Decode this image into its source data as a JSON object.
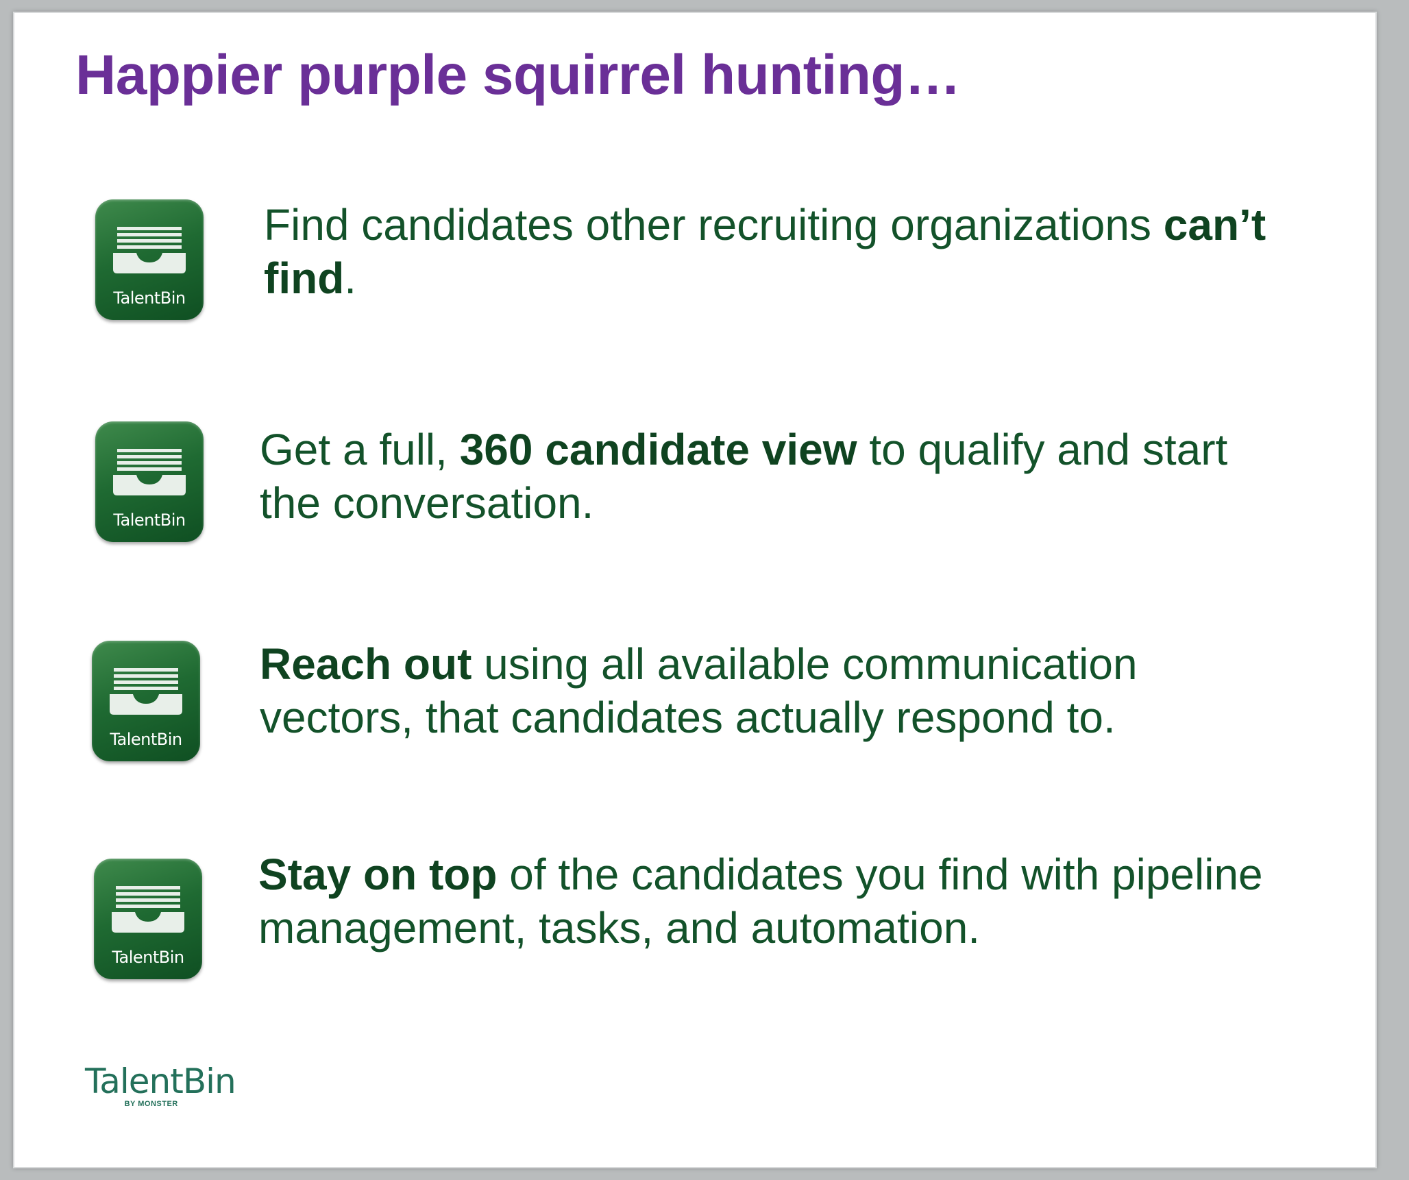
{
  "slide": {
    "title": "Happier purple squirrel hunting…",
    "icon_label": "TalentBin",
    "items": [
      {
        "parts": [
          {
            "text": "Find candidates other recruiting organizations "
          },
          {
            "text": "can’t find",
            "bold": true
          },
          {
            "text": "."
          }
        ]
      },
      {
        "parts": [
          {
            "text": "Get a full, "
          },
          {
            "text": "360 candidate view",
            "bold": true
          },
          {
            "text": " to qualify and start the conversation."
          }
        ]
      },
      {
        "parts": [
          {
            "text": "Reach out",
            "bold": true
          },
          {
            "text": " using all available communication vectors, that candidates actually respond to."
          }
        ]
      },
      {
        "parts": [
          {
            "text": "Stay on top",
            "bold": true
          },
          {
            "text": " of the candidates you find with pipeline management, tasks, and automation."
          }
        ]
      }
    ],
    "footer": {
      "logo_text": "TalentBin",
      "logo_subtext": "BY MONSTER"
    }
  },
  "colors": {
    "title": "#6a2f97",
    "body_text": "#13522a",
    "icon_green": "#1f6a32"
  },
  "icons": [
    "inbox-tray-icon"
  ]
}
